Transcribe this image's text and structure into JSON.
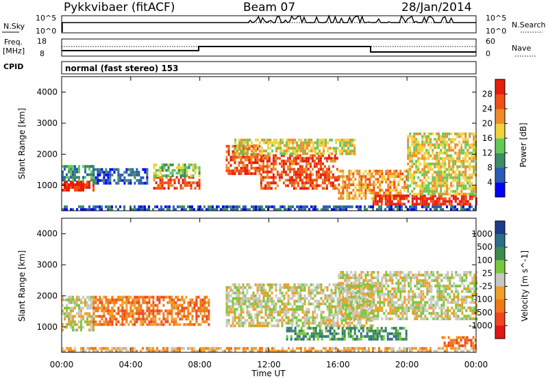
{
  "header": {
    "radar": "Pykkvibaer (fitACF)",
    "beam": "Beam 07",
    "date": "28/Jan/2014"
  },
  "noise_panel": {
    "left_label": "N.Sky",
    "right_label": "N.Search",
    "left_ticks": [
      "10^5",
      "10^0"
    ],
    "right_ticks": [
      "10^5",
      "10^0"
    ]
  },
  "freq_panel": {
    "left_label_1": "Freq.",
    "left_label_2": "[MHz]",
    "right_label": "Nave",
    "left_ticks": [
      "18",
      "8"
    ],
    "right_ticks": [
      "60",
      "0"
    ],
    "cpid_label": "CPID",
    "cpid_text": "normal (fast stereo) 153"
  },
  "chart_data": [
    {
      "type": "heatmap",
      "name": "power",
      "ylabel": "Slant Range [km]",
      "xlabel": "Time UT",
      "x_ticks": [
        "00:00",
        "04:00",
        "08:00",
        "12:00",
        "16:00",
        "20:00",
        "00:00"
      ],
      "xlim_hours": [
        0,
        24
      ],
      "y_ticks": [
        1000,
        2000,
        3000,
        4000
      ],
      "ylim": [
        180,
        4500
      ],
      "colorbar": {
        "label": "Power [dB]",
        "ticks": [
          "4",
          "8",
          "12",
          "16",
          "20",
          "24",
          "28"
        ],
        "colors": [
          "#0000ff",
          "#2c5ab4",
          "#3c8c64",
          "#64c85a",
          "#f0d23c",
          "#f08c28",
          "#f05014",
          "#e61e0a"
        ]
      },
      "regions": [
        {
          "t": [
            0.0,
            1.8
          ],
          "r": [
            800,
            1150
          ],
          "level": 7
        },
        {
          "t": [
            0.0,
            1.8
          ],
          "r": [
            1150,
            1650
          ],
          "level": 2
        },
        {
          "t": [
            1.8,
            5.0
          ],
          "r": [
            1100,
            1550
          ],
          "level": 1
        },
        {
          "t": [
            5.3,
            8.0
          ],
          "r": [
            900,
            1300
          ],
          "level": 6
        },
        {
          "t": [
            5.3,
            8.0
          ],
          "r": [
            1300,
            1700
          ],
          "level": 3
        },
        {
          "t": [
            9.5,
            11.5
          ],
          "r": [
            1400,
            2300
          ],
          "level": 6
        },
        {
          "t": [
            11.5,
            16.0
          ],
          "r": [
            900,
            2000
          ],
          "level": 6
        },
        {
          "t": [
            10.0,
            17.0
          ],
          "r": [
            2000,
            2500
          ],
          "level": 4
        },
        {
          "t": [
            16.0,
            20.0
          ],
          "r": [
            600,
            1500
          ],
          "level": 5
        },
        {
          "t": [
            18.0,
            24.0
          ],
          "r": [
            400,
            700
          ],
          "level": 7
        },
        {
          "t": [
            20.0,
            24.0
          ],
          "r": [
            700,
            2700
          ],
          "level": 4
        },
        {
          "t": [
            0.0,
            24.0
          ],
          "r": [
            200,
            350
          ],
          "level": 1
        }
      ]
    },
    {
      "type": "heatmap",
      "name": "velocity",
      "ylabel": "Slant Range [km]",
      "xlabel": "Time UT",
      "x_ticks": [
        "00:00",
        "04:00",
        "08:00",
        "12:00",
        "16:00",
        "20:00",
        "00:00"
      ],
      "xlim_hours": [
        0,
        24
      ],
      "y_ticks": [
        1000,
        2000,
        3000,
        4000
      ],
      "ylim": [
        180,
        4500
      ],
      "colorbar": {
        "label": "Velocity [m s^-1]",
        "ticks": [
          "1000",
          "500",
          "100",
          "25",
          "-25",
          "-100",
          "-500",
          "-1000"
        ],
        "colors": [
          "#1e3c8c",
          "#2d6e8c",
          "#3c8c50",
          "#78c83c",
          "#c8c8c0",
          "#f0a028",
          "#f07814",
          "#f0461e",
          "#e61414"
        ]
      },
      "regions": [
        {
          "t": [
            0.0,
            1.8
          ],
          "r": [
            900,
            2000
          ],
          "level": 4
        },
        {
          "t": [
            1.8,
            8.5
          ],
          "r": [
            1100,
            2000
          ],
          "level": 6
        },
        {
          "t": [
            9.5,
            18.0
          ],
          "r": [
            1000,
            2400
          ],
          "level": 4
        },
        {
          "t": [
            13.0,
            20.0
          ],
          "r": [
            600,
            1000
          ],
          "level": 2
        },
        {
          "t": [
            16.0,
            24.0
          ],
          "r": [
            1300,
            2800
          ],
          "level": 4
        },
        {
          "t": [
            22.0,
            24.0
          ],
          "r": [
            400,
            700
          ],
          "level": 6
        },
        {
          "t": [
            0.0,
            24.0
          ],
          "r": [
            200,
            350
          ],
          "level": 5
        }
      ]
    }
  ]
}
